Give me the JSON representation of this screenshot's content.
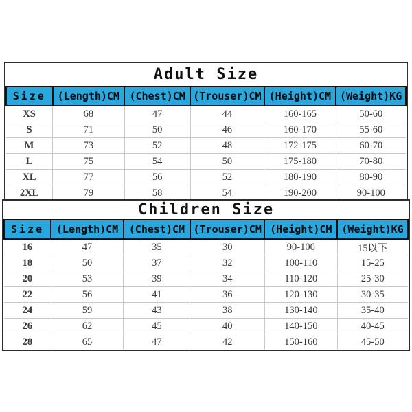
{
  "colors": {
    "page_bg": "#FFFFFF",
    "header_bg": "#29A8DF",
    "header_text": "#0A0A0A",
    "header_border": "#101010",
    "outer_border": "#2E2E2E",
    "grid_line": "#C8C8C8",
    "body_text": "#3A3A3A",
    "title_text": "#111111"
  },
  "chart_data": [
    {
      "type": "table",
      "title": "Adult Size",
      "columns": [
        "Size",
        "(Length)CM",
        "(Chest)CM",
        "(Trouser)CM",
        "(Height)CM",
        "(Weight)KG"
      ],
      "rows": [
        [
          "XS",
          "68",
          "47",
          "44",
          "160-165",
          "50-60"
        ],
        [
          "S",
          "71",
          "50",
          "46",
          "160-170",
          "55-60"
        ],
        [
          "M",
          "73",
          "52",
          "48",
          "172-175",
          "60-70"
        ],
        [
          "L",
          "75",
          "54",
          "50",
          "175-180",
          "70-80"
        ],
        [
          "XL",
          "77",
          "56",
          "52",
          "180-190",
          "80-90"
        ],
        [
          "2XL",
          "79",
          "58",
          "54",
          "190-200",
          "90-100"
        ]
      ]
    },
    {
      "type": "table",
      "title": "Children Size",
      "columns": [
        "Size",
        "(Length)CM",
        "(Chest)CM",
        "(Trouser)CM",
        "(Height)CM",
        "(Weight)KG"
      ],
      "rows": [
        [
          "16",
          "47",
          "35",
          "30",
          "90-100",
          "15以下"
        ],
        [
          "18",
          "50",
          "37",
          "32",
          "100-110",
          "15-25"
        ],
        [
          "20",
          "53",
          "39",
          "34",
          "110-120",
          "25-30"
        ],
        [
          "22",
          "56",
          "41",
          "36",
          "120-130",
          "30-35"
        ],
        [
          "24",
          "59",
          "43",
          "38",
          "130-140",
          "35-40"
        ],
        [
          "26",
          "62",
          "45",
          "40",
          "140-150",
          "40-45"
        ],
        [
          "28",
          "65",
          "47",
          "42",
          "150-160",
          "45-50"
        ]
      ]
    }
  ]
}
